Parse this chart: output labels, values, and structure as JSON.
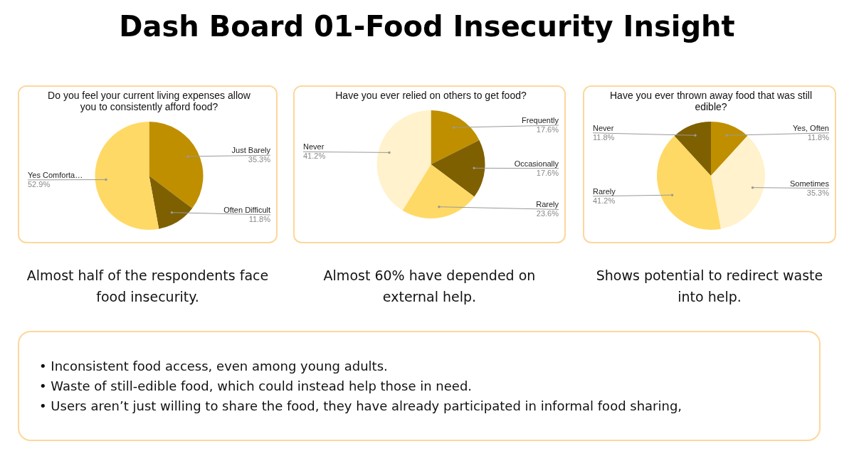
{
  "chart_data": [
    {
      "type": "other",
      "title": "Dash Board 01-Food Insecurity Insight"
    },
    {
      "type": "pie",
      "title": "Do you feel your current living expenses allow you to consistently afford food?",
      "categories": [
        "Just Barely",
        "Often Difficult",
        "Yes Comforta…"
      ],
      "values": [
        35.3,
        11.8,
        52.9
      ],
      "value_labels": [
        "35.3%",
        "11.8%",
        "52.9%"
      ],
      "colors": [
        "#bf8f00",
        "#7f6000",
        "#ffd966"
      ],
      "annotations": [
        "Almost half of the respondents face food insecurity."
      ]
    },
    {
      "type": "pie",
      "title": "Have you ever relied on others to get food?",
      "categories": [
        "Frequently",
        "Occasionally",
        "Rarely",
        "Never"
      ],
      "values": [
        17.6,
        17.6,
        23.6,
        41.2
      ],
      "value_labels": [
        "17.6%",
        "17.6%",
        "23.6%",
        "41.2%"
      ],
      "colors": [
        "#bf8f00",
        "#7f6000",
        "#ffd966",
        "#fff2cc"
      ],
      "annotations": [
        "Almost 60% have depended on external help."
      ]
    },
    {
      "type": "pie",
      "title": "Have you ever thrown away food that was still edible?",
      "categories": [
        "Yes, Often",
        "Sometimes",
        "Rarely",
        "Never"
      ],
      "values": [
        11.8,
        35.3,
        41.2,
        11.8
      ],
      "value_labels": [
        "11.8%",
        "35.3%",
        "41.2%",
        "11.8%"
      ],
      "colors": [
        "#bf8f00",
        "#fff2cc",
        "#ffd966",
        "#7f6000"
      ],
      "annotations": [
        "Shows potential to redirect waste into help."
      ]
    },
    {
      "type": "other",
      "annotations": [
        "• Inconsistent food access, even among young adults.",
        "• Waste of still-edible food, which could instead help those in need.",
        "• Users aren’t just willing to share the food, they have already participated in informal food sharing,"
      ]
    }
  ]
}
